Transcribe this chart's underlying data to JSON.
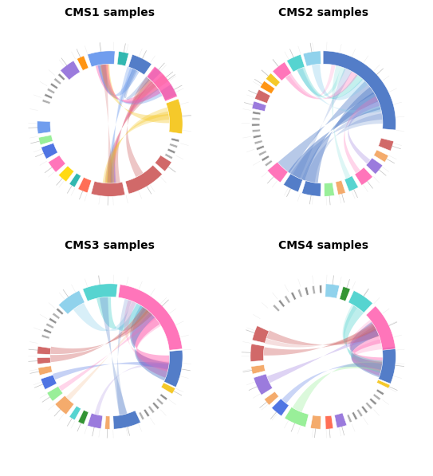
{
  "titles": [
    "CMS1 samples",
    "CMS2 samples",
    "CMS3 samples",
    "CMS4 samples"
  ],
  "title_fontsize": 10,
  "background_color": "#ffffff",
  "cms": [
    {
      "name": "CMS1",
      "segments": [
        {
          "color": "#F5C518",
          "a1": 352,
          "a2": 380
        },
        {
          "color": "#4472C4",
          "a1": 383,
          "a2": 393
        },
        {
          "color": "#F4A460",
          "a1": 396,
          "a2": 403
        },
        {
          "color": "#4472C4",
          "a1": 405,
          "a2": 411
        },
        {
          "color": "#FF69B4",
          "a1": 22,
          "a2": 52
        },
        {
          "color": "#4472C4",
          "a1": 55,
          "a2": 72
        },
        {
          "color": "#20B2AA",
          "a1": 75,
          "a2": 83
        },
        {
          "color": "#6495ED",
          "a1": 86,
          "a2": 108
        },
        {
          "color": "#FF8C00",
          "a1": 111,
          "a2": 117
        },
        {
          "color": "#9370DB",
          "a1": 120,
          "a2": 133
        },
        {
          "color": "#6495ED",
          "a1": 178,
          "a2": 188
        },
        {
          "color": "#90EE90",
          "a1": 191,
          "a2": 197
        },
        {
          "color": "#4169E1",
          "a1": 199,
          "a2": 209
        },
        {
          "color": "#FF69B4",
          "a1": 212,
          "a2": 222
        },
        {
          "color": "#FFD700",
          "a1": 225,
          "a2": 233
        },
        {
          "color": "#20B2AA",
          "a1": 236,
          "a2": 241
        },
        {
          "color": "#FF6347",
          "a1": 244,
          "a2": 252
        },
        {
          "color": "#CD5C5C",
          "a1": 255,
          "a2": 282
        },
        {
          "color": "#CD5C5C",
          "a1": 285,
          "a2": 316
        },
        {
          "color": "#CD5C5C",
          "a1": 319,
          "a2": 328
        }
      ],
      "small_segs": [
        {
          "color": "#888888",
          "a1": 135,
          "a2": 137
        },
        {
          "color": "#aaaaaa",
          "a1": 140,
          "a2": 142
        },
        {
          "color": "#888888",
          "a1": 145,
          "a2": 147
        },
        {
          "color": "#aaaaaa",
          "a1": 150,
          "a2": 152
        },
        {
          "color": "#888888",
          "a1": 155,
          "a2": 157
        },
        {
          "color": "#aaaaaa",
          "a1": 160,
          "a2": 162
        },
        {
          "color": "#aaaaaa",
          "a1": 330,
          "a2": 332
        },
        {
          "color": "#888888",
          "a1": 335,
          "a2": 337
        },
        {
          "color": "#aaaaaa",
          "a1": 340,
          "a2": 342
        },
        {
          "color": "#888888",
          "a1": 345,
          "a2": 347
        }
      ],
      "chords": [
        {
          "a1": 37,
          "a2": 98,
          "color": "#FF69B4",
          "alpha": 0.45,
          "dw": 12
        },
        {
          "a1": 40,
          "a2": 270,
          "color": "#CD5C5C",
          "alpha": 0.35,
          "dw": 10
        },
        {
          "a1": 44,
          "a2": 275,
          "color": "#CD5C5C",
          "alpha": 0.35,
          "dw": 10
        },
        {
          "a1": 48,
          "a2": 300,
          "color": "#CD5C5C",
          "alpha": 0.35,
          "dw": 8
        },
        {
          "a1": 32,
          "a2": 98,
          "color": "#6495ED",
          "alpha": 0.35,
          "dw": 8
        },
        {
          "a1": 42,
          "a2": 272,
          "color": "#FF69B4",
          "alpha": 0.35,
          "dw": 8
        },
        {
          "a1": 64,
          "a2": 98,
          "color": "#6495ED",
          "alpha": 0.35,
          "dw": 7
        },
        {
          "a1": 67,
          "a2": 270,
          "color": "#6495ED",
          "alpha": 0.3,
          "dw": 6
        },
        {
          "a1": 70,
          "a2": 273,
          "color": "#6495ED",
          "alpha": 0.3,
          "dw": 6
        },
        {
          "a1": 365,
          "a2": 95,
          "color": "#F5C518",
          "alpha": 0.35,
          "dw": 9
        },
        {
          "a1": 368,
          "a2": 267,
          "color": "#F5C518",
          "alpha": 0.3,
          "dw": 8
        },
        {
          "a1": 372,
          "a2": 270,
          "color": "#F5C518",
          "alpha": 0.3,
          "dw": 8
        },
        {
          "a1": 35,
          "a2": 95,
          "color": "#FF69B4",
          "alpha": 0.3,
          "dw": 7
        },
        {
          "a1": 50,
          "a2": 65,
          "color": "#4472C4",
          "alpha": 0.25,
          "dw": 5
        },
        {
          "a1": 270,
          "a2": 96,
          "color": "#CD5C5C",
          "alpha": 0.25,
          "dw": 5
        }
      ]
    },
    {
      "name": "CMS2",
      "segments": [
        {
          "color": "#4472C4",
          "a1": 355,
          "a2": 90
        },
        {
          "color": "#87CEEB",
          "a1": 92,
          "a2": 106
        },
        {
          "color": "#48D1CC",
          "a1": 108,
          "a2": 120
        },
        {
          "color": "#FF69B4",
          "a1": 122,
          "a2": 134
        },
        {
          "color": "#F5C518",
          "a1": 136,
          "a2": 142
        },
        {
          "color": "#FF8C00",
          "a1": 144,
          "a2": 150
        },
        {
          "color": "#CD5C5C",
          "a1": 152,
          "a2": 160
        },
        {
          "color": "#9370DB",
          "a1": 162,
          "a2": 168
        },
        {
          "color": "#FF69B4",
          "a1": 220,
          "a2": 234
        },
        {
          "color": "#4472C4",
          "a1": 237,
          "a2": 250
        },
        {
          "color": "#4472C4",
          "a1": 253,
          "a2": 268
        },
        {
          "color": "#90EE90",
          "a1": 271,
          "a2": 279
        },
        {
          "color": "#F4A460",
          "a1": 282,
          "a2": 288
        },
        {
          "color": "#48D1CC",
          "a1": 291,
          "a2": 299
        },
        {
          "color": "#FF69B4",
          "a1": 302,
          "a2": 313
        },
        {
          "color": "#9370DB",
          "a1": 316,
          "a2": 325
        },
        {
          "color": "#F4A460",
          "a1": 328,
          "a2": 334
        },
        {
          "color": "#CD5C5C",
          "a1": 338,
          "a2": 346
        }
      ],
      "small_segs": [
        {
          "color": "#888888",
          "a1": 170,
          "a2": 172
        },
        {
          "color": "#aaaaaa",
          "a1": 175,
          "a2": 177
        },
        {
          "color": "#888888",
          "a1": 180,
          "a2": 182
        },
        {
          "color": "#aaaaaa",
          "a1": 185,
          "a2": 187
        },
        {
          "color": "#888888",
          "a1": 190,
          "a2": 192
        },
        {
          "color": "#aaaaaa",
          "a1": 195,
          "a2": 197
        },
        {
          "color": "#888888",
          "a1": 200,
          "a2": 202
        },
        {
          "color": "#aaaaaa",
          "a1": 205,
          "a2": 207
        },
        {
          "color": "#888888",
          "a1": 210,
          "a2": 212
        },
        {
          "color": "#aaaaaa",
          "a1": 215,
          "a2": 217
        }
      ],
      "chords": [
        {
          "a1": 23,
          "a2": 243,
          "color": "#4472C4",
          "alpha": 0.45,
          "dw": 18
        },
        {
          "a1": 30,
          "a2": 257,
          "color": "#4472C4",
          "alpha": 0.4,
          "dw": 16
        },
        {
          "a1": 38,
          "a2": 228,
          "color": "#4472C4",
          "alpha": 0.38,
          "dw": 15
        },
        {
          "a1": 45,
          "a2": 97,
          "color": "#87CEEB",
          "alpha": 0.35,
          "dw": 8
        },
        {
          "a1": 52,
          "a2": 112,
          "color": "#48D1CC",
          "alpha": 0.32,
          "dw": 8
        },
        {
          "a1": 58,
          "a2": 126,
          "color": "#FF69B4",
          "alpha": 0.3,
          "dw": 7
        },
        {
          "a1": 15,
          "a2": 113,
          "color": "#87CEEB",
          "alpha": 0.28,
          "dw": 6
        },
        {
          "a1": 20,
          "a2": 320,
          "color": "#9370DB",
          "alpha": 0.28,
          "dw": 5
        },
        {
          "a1": 25,
          "a2": 306,
          "color": "#FF69B4",
          "alpha": 0.28,
          "dw": 5
        },
        {
          "a1": 10,
          "a2": 243,
          "color": "#4472C4",
          "alpha": 0.25,
          "dw": 12
        },
        {
          "a1": 5,
          "a2": 257,
          "color": "#4472C4",
          "alpha": 0.22,
          "dw": 10
        },
        {
          "a1": 65,
          "a2": 243,
          "color": "#4472C4",
          "alpha": 0.2,
          "dw": 8
        },
        {
          "a1": 70,
          "a2": 113,
          "color": "#48D1CC",
          "alpha": 0.2,
          "dw": 5
        },
        {
          "a1": 75,
          "a2": 295,
          "color": "#48D1CC",
          "alpha": 0.18,
          "dw": 5
        },
        {
          "a1": 80,
          "a2": 127,
          "color": "#FF69B4",
          "alpha": 0.18,
          "dw": 4
        }
      ]
    },
    {
      "name": "CMS3",
      "segments": [
        {
          "color": "#4472C4",
          "a1": 335,
          "a2": 365
        },
        {
          "color": "#FF69B4",
          "a1": 6,
          "a2": 82
        },
        {
          "color": "#48D1CC",
          "a1": 84,
          "a2": 112
        },
        {
          "color": "#87CEEB",
          "a1": 115,
          "a2": 135
        },
        {
          "color": "#F5C518",
          "a1": 329,
          "a2": 334
        },
        {
          "color": "#CD5C5C",
          "a1": 172,
          "a2": 178
        },
        {
          "color": "#CD5C5C",
          "a1": 181,
          "a2": 186
        },
        {
          "color": "#F4A460",
          "a1": 189,
          "a2": 195
        },
        {
          "color": "#4169E1",
          "a1": 198,
          "a2": 207
        },
        {
          "color": "#90EE90",
          "a1": 210,
          "a2": 218
        },
        {
          "color": "#F4A460",
          "a1": 221,
          "a2": 233
        },
        {
          "color": "#48D1CC",
          "a1": 236,
          "a2": 241
        },
        {
          "color": "#228B22",
          "a1": 244,
          "a2": 249
        },
        {
          "color": "#9370DB",
          "a1": 252,
          "a2": 263
        },
        {
          "color": "#F4A460",
          "a1": 266,
          "a2": 270
        },
        {
          "color": "#4472C4",
          "a1": 273,
          "a2": 295
        }
      ],
      "small_segs": [
        {
          "color": "#888888",
          "a1": 137,
          "a2": 139
        },
        {
          "color": "#aaaaaa",
          "a1": 142,
          "a2": 144
        },
        {
          "color": "#888888",
          "a1": 147,
          "a2": 149
        },
        {
          "color": "#aaaaaa",
          "a1": 152,
          "a2": 154
        },
        {
          "color": "#888888",
          "a1": 157,
          "a2": 159
        },
        {
          "color": "#aaaaaa",
          "a1": 162,
          "a2": 164
        },
        {
          "color": "#aaaaaa",
          "a1": 297,
          "a2": 299
        },
        {
          "color": "#888888",
          "a1": 302,
          "a2": 304
        },
        {
          "color": "#aaaaaa",
          "a1": 307,
          "a2": 309
        },
        {
          "color": "#888888",
          "a1": 312,
          "a2": 314
        },
        {
          "color": "#aaaaaa",
          "a1": 317,
          "a2": 319
        },
        {
          "color": "#888888",
          "a1": 322,
          "a2": 324
        }
      ],
      "chords": [
        {
          "a1": 44,
          "a2": 350,
          "color": "#FF69B4",
          "alpha": 0.5,
          "dw": 22
        },
        {
          "a1": 50,
          "a2": 345,
          "color": "#4472C4",
          "alpha": 0.42,
          "dw": 18
        },
        {
          "a1": 56,
          "a2": 96,
          "color": "#48D1CC",
          "alpha": 0.38,
          "dw": 14
        },
        {
          "a1": 62,
          "a2": 122,
          "color": "#87CEEB",
          "alpha": 0.32,
          "dw": 12
        },
        {
          "a1": 174,
          "a2": 48,
          "color": "#CD5C5C",
          "alpha": 0.38,
          "dw": 7
        },
        {
          "a1": 182,
          "a2": 53,
          "color": "#CD5C5C",
          "alpha": 0.38,
          "dw": 7
        },
        {
          "a1": 200,
          "a2": 350,
          "color": "#4169E1",
          "alpha": 0.3,
          "dw": 6
        },
        {
          "a1": 213,
          "a2": 42,
          "color": "#FF69B4",
          "alpha": 0.28,
          "dw": 5
        },
        {
          "a1": 283,
          "a2": 96,
          "color": "#4472C4",
          "alpha": 0.28,
          "dw": 8
        },
        {
          "a1": 36,
          "a2": 350,
          "color": "#FF69B4",
          "alpha": 0.25,
          "dw": 10
        },
        {
          "a1": 68,
          "a2": 350,
          "color": "#FF69B4",
          "alpha": 0.22,
          "dw": 8
        },
        {
          "a1": 72,
          "a2": 283,
          "color": "#4472C4",
          "alpha": 0.2,
          "dw": 7
        },
        {
          "a1": 225,
          "a2": 50,
          "color": "#F4A460",
          "alpha": 0.2,
          "dw": 5
        },
        {
          "a1": 257,
          "a2": 350,
          "color": "#9370DB",
          "alpha": 0.2,
          "dw": 4
        }
      ]
    },
    {
      "name": "CMS4",
      "segments": [
        {
          "color": "#4472C4",
          "a1": 338,
          "a2": 368
        },
        {
          "color": "#FF69B4",
          "a1": 6,
          "a2": 44
        },
        {
          "color": "#48D1CC",
          "a1": 47,
          "a2": 65
        },
        {
          "color": "#228B22",
          "a1": 68,
          "a2": 74
        },
        {
          "color": "#87CEEB",
          "a1": 77,
          "a2": 88
        },
        {
          "color": "#CD5C5C",
          "a1": 155,
          "a2": 167
        },
        {
          "color": "#CD5C5C",
          "a1": 170,
          "a2": 184
        },
        {
          "color": "#F4A460",
          "a1": 188,
          "a2": 194
        },
        {
          "color": "#9370DB",
          "a1": 197,
          "a2": 212
        },
        {
          "color": "#F4A460",
          "a1": 216,
          "a2": 222
        },
        {
          "color": "#4169E1",
          "a1": 225,
          "a2": 235
        },
        {
          "color": "#90EE90",
          "a1": 238,
          "a2": 256
        },
        {
          "color": "#F4A460",
          "a1": 260,
          "a2": 268
        },
        {
          "color": "#FF6347",
          "a1": 272,
          "a2": 278
        },
        {
          "color": "#9370DB",
          "a1": 281,
          "a2": 289
        },
        {
          "color": "#F5C518",
          "a1": 334,
          "a2": 337
        }
      ],
      "small_segs": [
        {
          "color": "#888888",
          "a1": 91,
          "a2": 93
        },
        {
          "color": "#aaaaaa",
          "a1": 97,
          "a2": 99
        },
        {
          "color": "#888888",
          "a1": 103,
          "a2": 105
        },
        {
          "color": "#aaaaaa",
          "a1": 109,
          "a2": 111
        },
        {
          "color": "#888888",
          "a1": 115,
          "a2": 117
        },
        {
          "color": "#aaaaaa",
          "a1": 121,
          "a2": 123
        },
        {
          "color": "#888888",
          "a1": 127,
          "a2": 129
        },
        {
          "color": "#aaaaaa",
          "a1": 133,
          "a2": 135
        },
        {
          "color": "#aaaaaa",
          "a1": 292,
          "a2": 294
        },
        {
          "color": "#888888",
          "a1": 297,
          "a2": 299
        },
        {
          "color": "#aaaaaa",
          "a1": 302,
          "a2": 304
        },
        {
          "color": "#888888",
          "a1": 307,
          "a2": 309
        },
        {
          "color": "#aaaaaa",
          "a1": 312,
          "a2": 314
        },
        {
          "color": "#888888",
          "a1": 317,
          "a2": 319
        },
        {
          "color": "#aaaaaa",
          "a1": 322,
          "a2": 324
        },
        {
          "color": "#888888",
          "a1": 327,
          "a2": 329
        }
      ],
      "chords": [
        {
          "a1": 22,
          "a2": 350,
          "color": "#FF69B4",
          "alpha": 0.45,
          "dw": 18
        },
        {
          "a1": 28,
          "a2": 347,
          "color": "#4472C4",
          "alpha": 0.4,
          "dw": 15
        },
        {
          "a1": 53,
          "a2": 350,
          "color": "#48D1CC",
          "alpha": 0.36,
          "dw": 12
        },
        {
          "a1": 158,
          "a2": 24,
          "color": "#CD5C5C",
          "alpha": 0.38,
          "dw": 8
        },
        {
          "a1": 175,
          "a2": 30,
          "color": "#CD5C5C",
          "alpha": 0.38,
          "dw": 8
        },
        {
          "a1": 244,
          "a2": 350,
          "color": "#90EE90",
          "alpha": 0.32,
          "dw": 10
        },
        {
          "a1": 203,
          "a2": 24,
          "color": "#9370DB",
          "alpha": 0.3,
          "dw": 7
        },
        {
          "a1": 229,
          "a2": 350,
          "color": "#4169E1",
          "alpha": 0.28,
          "dw": 6
        },
        {
          "a1": 12,
          "a2": 350,
          "color": "#FF69B4",
          "alpha": 0.22,
          "dw": 10
        },
        {
          "a1": 34,
          "a2": 350,
          "color": "#FF69B4",
          "alpha": 0.2,
          "dw": 8
        },
        {
          "a1": 165,
          "a2": 30,
          "color": "#CD5C5C",
          "alpha": 0.2,
          "dw": 5
        },
        {
          "a1": 58,
          "a2": 350,
          "color": "#48D1CC",
          "alpha": 0.18,
          "dw": 6
        }
      ]
    }
  ]
}
